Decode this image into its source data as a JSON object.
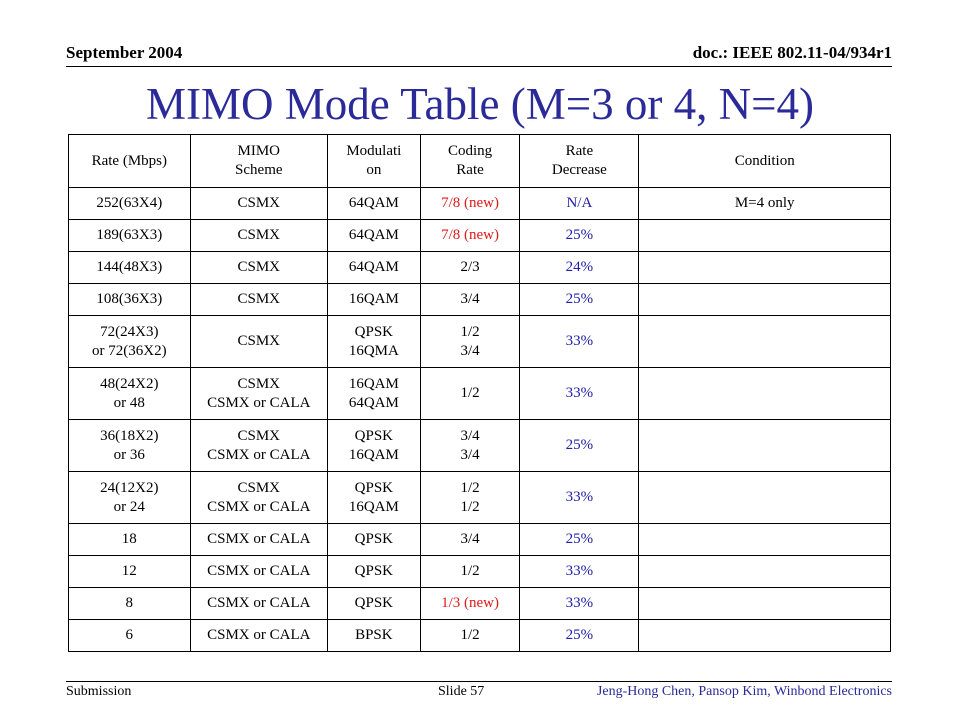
{
  "header": {
    "date": "September 2004",
    "doc_id": "doc.: IEEE 802.11-04/934r1"
  },
  "title": "MIMO Mode Table (M=3 or 4, N=4)",
  "table": {
    "columns": [
      "Rate (Mbps)",
      "MIMO\nScheme",
      "Modulati\non",
      "Coding\nRate",
      "Rate\nDecrease",
      "Condition"
    ],
    "rows": [
      {
        "rate": "252(63X4)",
        "scheme": "CSMX",
        "modulation": "64QAM",
        "coding": "7/8 (new)",
        "decrease": "N/A",
        "condition": "M=4 only",
        "coding_style": "red",
        "decrease_style": "blue"
      },
      {
        "rate": "189(63X3)",
        "scheme": "CSMX",
        "modulation": "64QAM",
        "coding": "7/8 (new)",
        "decrease": "25%",
        "condition": "",
        "coding_style": "red",
        "decrease_style": "blue"
      },
      {
        "rate": "144(48X3)",
        "scheme": "CSMX",
        "modulation": "64QAM",
        "coding": "2/3",
        "decrease": "24%",
        "condition": "",
        "coding_style": "",
        "decrease_style": "blue"
      },
      {
        "rate": "108(36X3)",
        "scheme": "CSMX",
        "modulation": "16QAM",
        "coding": "3/4",
        "decrease": "25%",
        "condition": "",
        "coding_style": "",
        "decrease_style": "blue"
      },
      {
        "rate": "72(24X3)\nor 72(36X2)",
        "scheme": "CSMX",
        "modulation": "QPSK\n16QMA",
        "coding": "1/2\n3/4",
        "decrease": "33%",
        "condition": "",
        "coding_style": "",
        "decrease_style": "blue"
      },
      {
        "rate": "48(24X2)\nor 48",
        "scheme": "CSMX\nCSMX or CALA",
        "modulation": "16QAM\n64QAM",
        "coding": "1/2",
        "decrease": "33%",
        "condition": "",
        "coding_style": "",
        "decrease_style": "blue"
      },
      {
        "rate": "36(18X2)\nor 36",
        "scheme": "CSMX\nCSMX or CALA",
        "modulation": "QPSK\n16QAM",
        "coding": "3/4\n3/4",
        "decrease": "25%",
        "condition": "",
        "coding_style": "",
        "decrease_style": "blue"
      },
      {
        "rate": "24(12X2)\nor 24",
        "scheme": "CSMX\nCSMX or CALA",
        "modulation": "QPSK\n16QAM",
        "coding": "1/2\n1/2",
        "decrease": "33%",
        "condition": "",
        "coding_style": "",
        "decrease_style": "blue"
      },
      {
        "rate": "18",
        "scheme": "CSMX or CALA",
        "modulation": "QPSK",
        "coding": "3/4",
        "decrease": "25%",
        "condition": "",
        "coding_style": "",
        "decrease_style": "blue"
      },
      {
        "rate": "12",
        "scheme": "CSMX or CALA",
        "modulation": "QPSK",
        "coding": "1/2",
        "decrease": "33%",
        "condition": "",
        "coding_style": "",
        "decrease_style": "blue"
      },
      {
        "rate": "8",
        "scheme": "CSMX or CALA",
        "modulation": "QPSK",
        "coding": "1/3 (new)",
        "decrease": "33%",
        "condition": "",
        "coding_style": "red",
        "decrease_style": "blue"
      },
      {
        "rate": "6",
        "scheme": "CSMX or CALA",
        "modulation": "BPSK",
        "coding": "1/2",
        "decrease": "25%",
        "condition": "",
        "coding_style": "",
        "decrease_style": "blue"
      }
    ]
  },
  "colors": {
    "title": "#2a2a99",
    "highlight_red": "#e01818",
    "highlight_blue": "#2020a8"
  },
  "footer": {
    "left": "Submission",
    "slide": "Slide 57",
    "authors": "Jeng-Hong Chen, Pansop Kim, Winbond Electronics"
  }
}
